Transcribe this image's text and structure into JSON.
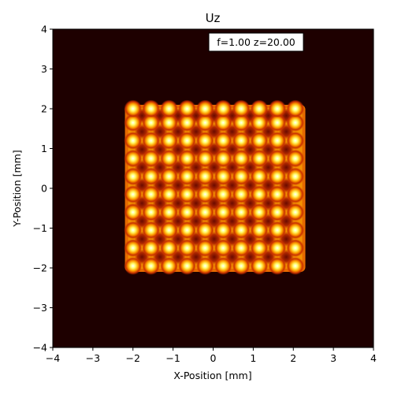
{
  "chart_data": {
    "type": "heatmap",
    "title": "Uz",
    "xlabel": "X-Position [mm]",
    "ylabel": "Y-Position [mm]",
    "xlim": [
      -4,
      4
    ],
    "ylim": [
      -4,
      4
    ],
    "xticks": [
      "−4",
      "−3",
      "−2",
      "−1",
      "0",
      "1",
      "2",
      "3",
      "4"
    ],
    "yticks": [
      "−4",
      "−3",
      "−2",
      "−1",
      "0",
      "1",
      "2",
      "3",
      "4"
    ],
    "xtick_values": [
      -4,
      -3,
      -2,
      -1,
      0,
      1,
      2,
      3,
      4
    ],
    "ytick_values": [
      -4,
      -3,
      -2,
      -1,
      0,
      1,
      2,
      3,
      4
    ],
    "annotation": "f=1.00 z=20.00",
    "colormap": "hot",
    "background_color": "#1e0000",
    "grid": false,
    "field_extent": {
      "x": [
        -2.2,
        2.3
      ],
      "y": [
        -2.1,
        2.1
      ]
    },
    "spot_grid": {
      "x": [
        -2.0,
        -1.55,
        -1.1,
        -0.65,
        -0.2,
        0.25,
        0.7,
        1.15,
        1.6,
        2.05
      ],
      "y": [
        -1.95,
        -1.5,
        -1.05,
        -0.6,
        -0.15,
        0.3,
        0.75,
        1.2,
        1.65,
        2.0
      ]
    }
  }
}
